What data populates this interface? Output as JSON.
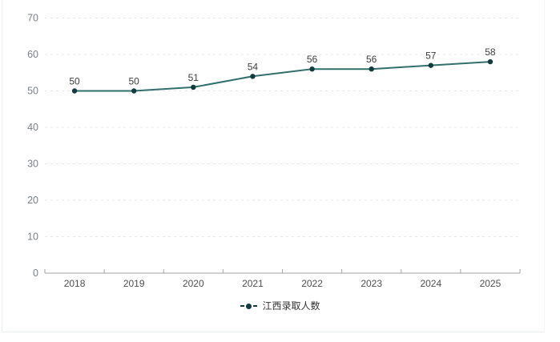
{
  "chart_data": {
    "type": "line",
    "title": "",
    "categories": [
      "2018",
      "2019",
      "2020",
      "2021",
      "2022",
      "2023",
      "2024",
      "2025"
    ],
    "series": [
      {
        "name": "江西录取人数",
        "values": [
          50,
          50,
          51,
          54,
          56,
          56,
          57,
          58
        ]
      }
    ],
    "ylim": [
      0,
      70
    ],
    "y_ticks": [
      0,
      10,
      20,
      30,
      40,
      50,
      60,
      70
    ],
    "grid": "horizontal-dashed",
    "legend_position": "bottom",
    "data_labels": true,
    "colors": {
      "line": "#31706c",
      "marker": "#123b3d",
      "grid": "#e8e8e8",
      "axis": "#a6a6a6",
      "y_tick_label": "#7b8087",
      "x_tick_label": "#4f4f4f",
      "data_label": "#3d3d3d",
      "legend_text": "#333333"
    }
  }
}
